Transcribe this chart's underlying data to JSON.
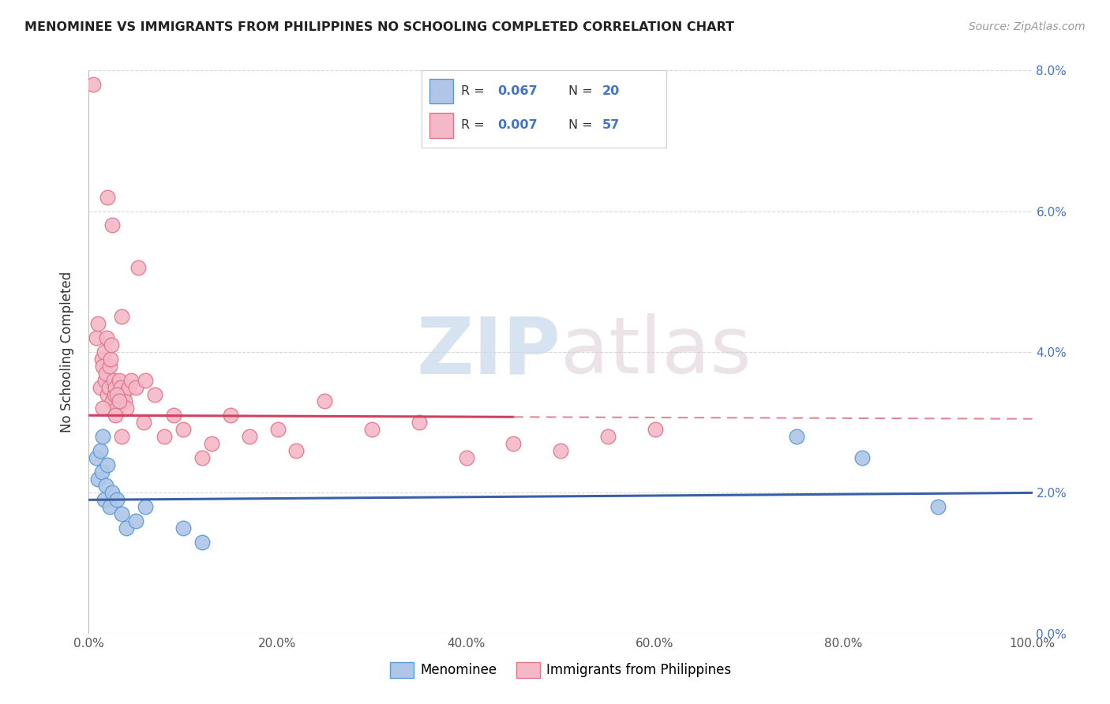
{
  "title": "MENOMINEE VS IMMIGRANTS FROM PHILIPPINES NO SCHOOLING COMPLETED CORRELATION CHART",
  "source_text": "Source: ZipAtlas.com",
  "ylabel": "No Schooling Completed",
  "x_tick_labels": [
    "0.0%",
    "20.0%",
    "40.0%",
    "60.0%",
    "80.0%",
    "100.0%"
  ],
  "y_tick_labels_right": [
    "0.0%",
    "2.0%",
    "4.0%",
    "6.0%",
    "8.0%"
  ],
  "xlim": [
    0,
    100
  ],
  "ylim": [
    0,
    8
  ],
  "legend_labels": [
    "Menominee",
    "Immigrants from Philippines"
  ],
  "legend_r1": "R = 0.067",
  "legend_n1": "N = 20",
  "legend_r2": "R = 0.007",
  "legend_n2": "N = 57",
  "menominee_color": "#aec6e8",
  "menominee_edge_color": "#5b9bd5",
  "philippines_color": "#f4b8c8",
  "philippines_edge_color": "#e07888",
  "menominee_line_color": "#3a5fa8",
  "philippines_line_color_solid": "#d04060",
  "philippines_line_color_dashed": "#e08898",
  "grid_color": "#d8d8d8",
  "background_color": "#ffffff",
  "watermark_zip": "ZIP",
  "watermark_atlas": "atlas",
  "menominee_x": [
    0.8,
    1.0,
    1.2,
    1.4,
    1.5,
    1.6,
    1.8,
    2.0,
    2.2,
    2.5,
    3.0,
    3.5,
    4.0,
    5.0,
    6.0,
    10.0,
    12.0,
    75.0,
    82.0,
    90.0
  ],
  "menominee_y": [
    2.5,
    2.2,
    2.6,
    2.3,
    2.8,
    1.9,
    2.1,
    2.4,
    1.8,
    2.0,
    1.9,
    1.7,
    1.5,
    1.6,
    1.8,
    1.5,
    1.3,
    2.8,
    2.5,
    1.8
  ],
  "philippines_x": [
    0.5,
    0.8,
    1.0,
    1.2,
    1.4,
    1.5,
    1.6,
    1.7,
    1.8,
    1.9,
    2.0,
    2.1,
    2.2,
    2.3,
    2.4,
    2.5,
    2.6,
    2.7,
    2.8,
    3.0,
    3.2,
    3.4,
    3.5,
    3.6,
    3.8,
    4.0,
    4.2,
    4.5,
    5.0,
    5.2,
    5.8,
    6.0,
    7.0,
    8.0,
    9.0,
    10.0,
    12.0,
    13.0,
    15.0,
    17.0,
    20.0,
    22.0,
    25.0,
    30.0,
    35.0,
    40.0,
    45.0,
    50.0,
    55.0,
    60.0,
    2.0,
    2.5,
    3.0,
    1.5,
    2.8,
    3.5,
    3.2
  ],
  "philippines_y": [
    7.8,
    4.2,
    4.4,
    3.5,
    3.9,
    3.8,
    4.0,
    3.6,
    3.7,
    4.2,
    3.4,
    3.5,
    3.8,
    3.9,
    4.1,
    3.3,
    3.6,
    3.4,
    3.5,
    3.2,
    3.6,
    3.5,
    4.5,
    3.4,
    3.3,
    3.2,
    3.5,
    3.6,
    3.5,
    5.2,
    3.0,
    3.6,
    3.4,
    2.8,
    3.1,
    2.9,
    2.5,
    2.7,
    3.1,
    2.8,
    2.9,
    2.6,
    3.3,
    2.9,
    3.0,
    2.5,
    2.7,
    2.6,
    2.8,
    2.9,
    6.2,
    5.8,
    3.4,
    3.2,
    3.1,
    2.8,
    3.3
  ],
  "philippines_solid_xmax": 45,
  "menominee_trend_y0": 1.9,
  "menominee_trend_y100": 2.0,
  "philippines_trend_y0": 3.1,
  "philippines_trend_y100": 3.05
}
